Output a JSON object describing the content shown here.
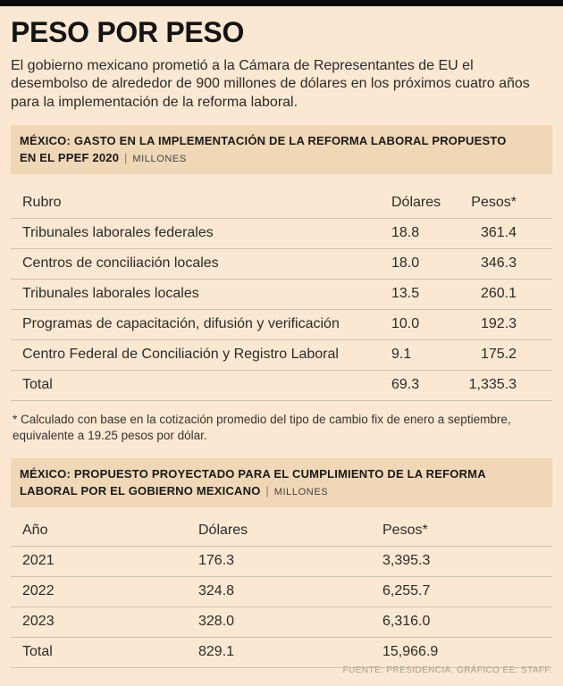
{
  "meta": {
    "title": "PESO POR PESO",
    "intro": "El gobierno mexicano prometió a la Cámara de Representantes de EU el desembolso de alrededor de 900 millones de dólares en los próximos cuatro años para la implementación de la reforma laboral.",
    "separator": "|",
    "source": "FUENTE: PRESIDENCIA. GRÁFICO EE: STAFF."
  },
  "colors": {
    "background": "#fbe8d2",
    "band_background": "#f0d8b7",
    "top_bar": "#0a0a0a",
    "text": "#2b2b28",
    "rule": "#cdc2ad",
    "source_text": "#a79e90"
  },
  "chart_data": [
    {
      "type": "table",
      "title": "MÉXICO: GASTO EN LA IMPLEMENTACIÓN DE LA REFORMA LABORAL PROPUESTO EN EL PPEF 2020",
      "unit_label": "MILLONES",
      "columns": [
        "Rubro",
        "Dólares",
        "Pesos*"
      ],
      "rows": [
        [
          "Tribunales laborales federales",
          "18.8",
          "361.4"
        ],
        [
          "Centros de conciliación locales",
          "18.0",
          "346.3"
        ],
        [
          "Tribunales laborales locales",
          "13.5",
          "260.1"
        ],
        [
          "Programas de capacitación, difusión y verificación",
          "10.0",
          "192.3"
        ],
        [
          "Centro Federal de Conciliación y Registro Laboral",
          "9.1",
          "175.2"
        ],
        [
          "Total",
          "69.3",
          "1,335.3"
        ]
      ],
      "footnote": "* Calculado con base en la cotización promedio del tipo de cambio fix de enero a septiembre, equivalente a 19.25 pesos por dólar."
    },
    {
      "type": "table",
      "title": "MÉXICO: PROPUESTO PROYECTADO PARA EL CUMPLIMIENTO DE LA REFORMA LABORAL POR EL GOBIERNO MEXICANO",
      "unit_label": "MILLONES",
      "columns": [
        "Año",
        "Dólares",
        "Pesos*"
      ],
      "rows": [
        [
          "2021",
          "176.3",
          "3,395.3"
        ],
        [
          "2022",
          "324.8",
          "6,255.7"
        ],
        [
          "2023",
          "328.0",
          "6,316.0"
        ],
        [
          "Total",
          "829.1",
          "15,966.9"
        ]
      ]
    }
  ]
}
